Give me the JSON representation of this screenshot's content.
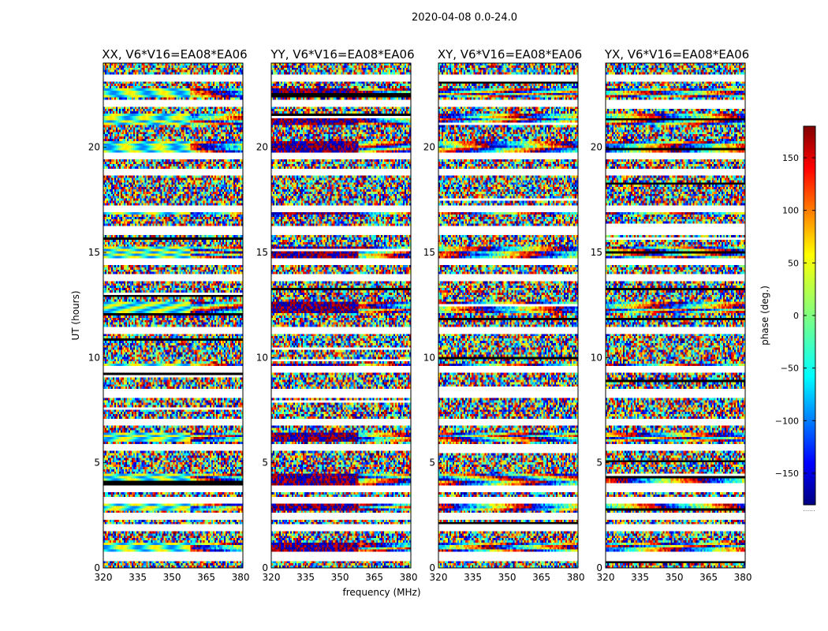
{
  "figure": {
    "suptitle": "2020-04-08 0.0-24.0",
    "xlabel": "frequency (MHz)",
    "ylabel": "UT (hours)",
    "colorbar_label": "phase (deg.)",
    "colorbar_dots": "......"
  },
  "chart_data": [
    {
      "type": "heatmap",
      "title": "XX, V6*V16=EA08*EA06",
      "xlim": [
        320,
        381
      ],
      "ylim": [
        0,
        24
      ],
      "xticks": [
        "320",
        "335",
        "350",
        "365",
        "380"
      ],
      "yticks": [
        "0",
        "5",
        "10",
        "15",
        "20"
      ],
      "colorscale": "jet",
      "zlim": [
        -180,
        180
      ],
      "values": "dense noisy phase pattern; brighter coherent bands near 20-22 h and 15 h"
    },
    {
      "type": "heatmap",
      "title": "YY, V6*V16=EA08*EA06",
      "xlim": [
        320,
        381
      ],
      "ylim": [
        0,
        24
      ],
      "xticks": [
        "320",
        "335",
        "350",
        "365",
        "380"
      ],
      "yticks": [
        "0",
        "5",
        "10",
        "15",
        "20"
      ],
      "colorscale": "jet",
      "zlim": [
        -180,
        180
      ],
      "values": "dense noisy phase pattern; dark-red/blue bands near 4, 10, 12, 15, 17, 21-23 h"
    },
    {
      "type": "heatmap",
      "title": "XY, V6*V16=EA08*EA06",
      "xlim": [
        320,
        381
      ],
      "ylim": [
        0,
        24
      ],
      "xticks": [
        "320",
        "335",
        "350",
        "365",
        "380"
      ],
      "yticks": [
        "0",
        "5",
        "10",
        "15",
        "20"
      ],
      "colorscale": "jet",
      "zlim": [
        -180,
        180
      ],
      "values": "dense noisy phase pattern"
    },
    {
      "type": "heatmap",
      "title": "YX, V6*V16=EA08*EA06",
      "xlim": [
        320,
        381
      ],
      "ylim": [
        0,
        24
      ],
      "xticks": [
        "320",
        "335",
        "350",
        "365",
        "380"
      ],
      "yticks": [
        "0",
        "5",
        "10",
        "15",
        "20"
      ],
      "colorscale": "jet",
      "zlim": [
        -180,
        180
      ],
      "values": "dense noisy phase pattern"
    }
  ],
  "colorbar": {
    "range": [
      -180,
      180
    ],
    "ticks": [
      "150",
      "100",
      "50",
      "0",
      "−50",
      "−100",
      "−150"
    ],
    "tick_values": [
      150,
      100,
      50,
      0,
      -50,
      -100,
      -150
    ]
  }
}
